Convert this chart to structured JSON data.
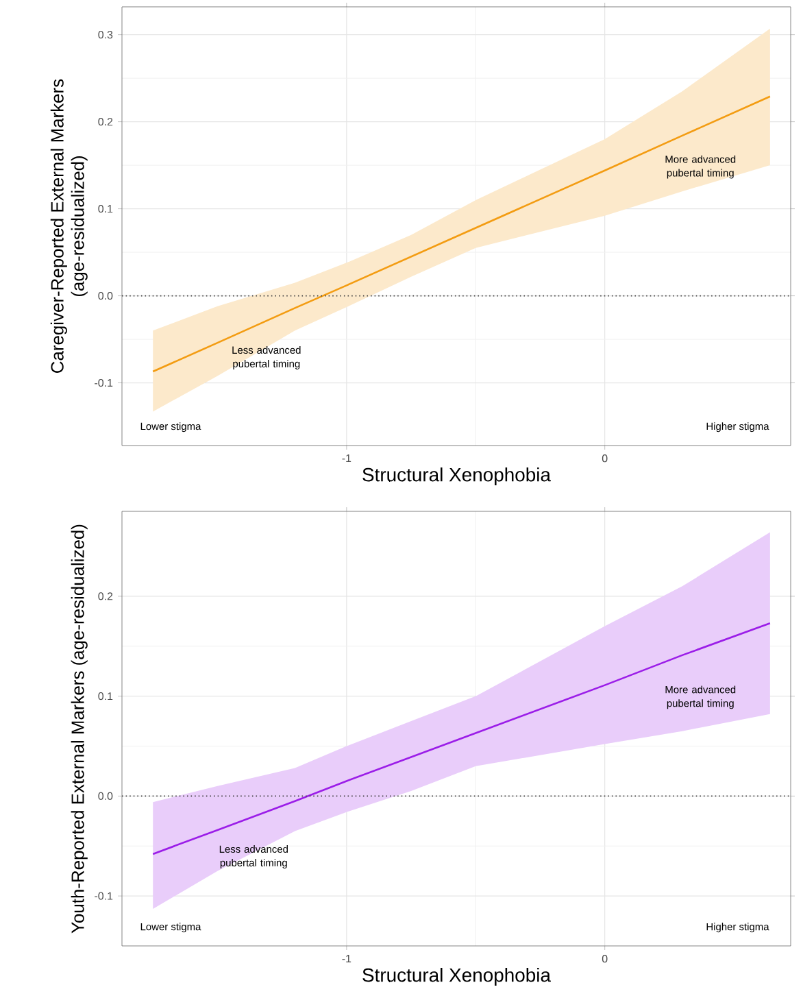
{
  "chart_data": [
    {
      "type": "line",
      "xlabel": "Structural Xenophobia",
      "ylabel": "Caregiver-Reported External Markers (age-residualized)",
      "x": [
        -1.75,
        -1.5,
        -1.2,
        -1.0,
        -0.75,
        -0.5,
        0,
        0.3,
        0.64
      ],
      "series": [
        {
          "color": "#f39c12",
          "values": [
            -0.087,
            -0.054,
            -0.014,
            0.012,
            0.045,
            0.078,
            0.144,
            0.184,
            0.229
          ],
          "upper": [
            -0.04,
            -0.012,
            0.015,
            0.038,
            0.07,
            0.11,
            0.18,
            0.235,
            0.307
          ],
          "lower": [
            -0.133,
            -0.092,
            -0.04,
            -0.013,
            0.022,
            0.055,
            0.092,
            0.12,
            0.15
          ]
        }
      ],
      "xlim": [
        -1.87,
        0.72
      ],
      "ylim": [
        -0.172,
        0.332
      ],
      "xticks": [
        -1,
        0
      ],
      "yticks": [
        {
          "value": -0.1,
          "label": "-0.1"
        },
        {
          "value": 0,
          "label": "0.0"
        },
        {
          "value": 0.1,
          "label": "0.1"
        },
        {
          "value": 0.2,
          "label": "0.2"
        },
        {
          "value": 0.3,
          "label": "0.3"
        }
      ],
      "ref_lines": [
        {
          "axis": "y",
          "value": 0,
          "line_style": "dotted",
          "color": "#404040"
        }
      ],
      "annotations": [
        "More advanced pubertal timing",
        "Less advanced pubertal timing",
        "Lower stigma",
        "Higher stigma"
      ],
      "grid": true,
      "marker": "none",
      "line_style": "solid"
    },
    {
      "type": "line",
      "xlabel": "Structural Xenophobia",
      "ylabel": "Youth-Reported External Markers (age-residualized)",
      "x": [
        -1.75,
        -1.5,
        -1.2,
        -1.0,
        -0.75,
        -0.5,
        0,
        0.3,
        0.64
      ],
      "series": [
        {
          "color": "#9b1de8",
          "values": [
            -0.058,
            -0.034,
            -0.005,
            0.015,
            0.039,
            0.063,
            0.111,
            0.141,
            0.173
          ],
          "upper": [
            -0.006,
            0.01,
            0.028,
            0.05,
            0.075,
            0.1,
            0.17,
            0.21,
            0.264
          ],
          "lower": [
            -0.113,
            -0.075,
            -0.035,
            -0.016,
            0.005,
            0.03,
            0.052,
            0.065,
            0.082
          ]
        }
      ],
      "xlim": [
        -1.87,
        0.72
      ],
      "ylim": [
        -0.15,
        0.285
      ],
      "xticks": [
        -1,
        0
      ],
      "yticks": [
        {
          "value": -0.1,
          "label": "-0.1"
        },
        {
          "value": 0,
          "label": "0.0"
        },
        {
          "value": 0.1,
          "label": "0.1"
        },
        {
          "value": 0.2,
          "label": "0.2"
        }
      ],
      "ref_lines": [
        {
          "axis": "y",
          "value": 0,
          "line_style": "dotted",
          "color": "#404040"
        }
      ],
      "annotations": [
        "More advanced pubertal timing",
        "Less advanced pubertal timing",
        "Lower stigma",
        "Higher stigma"
      ],
      "grid": true,
      "marker": "none",
      "line_style": "solid"
    }
  ]
}
